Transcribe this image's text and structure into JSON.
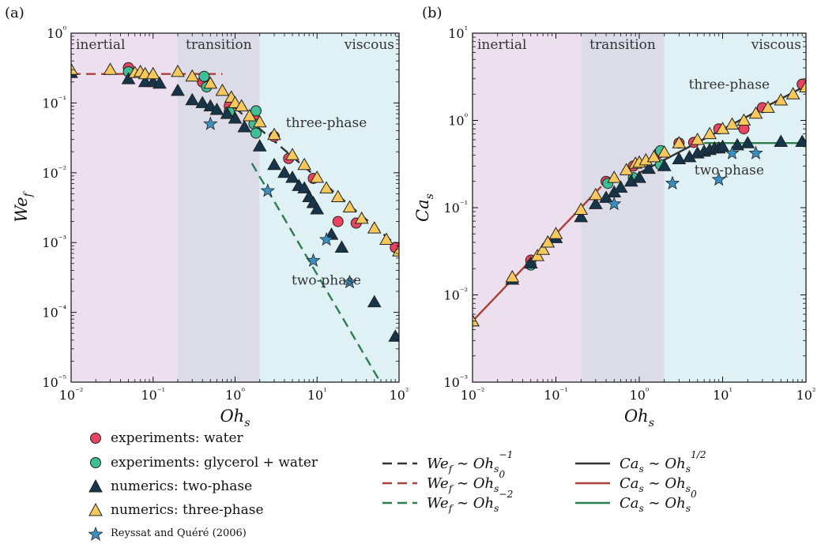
{
  "chart_data": [
    {
      "panel_label": "(a)",
      "type": "scatter",
      "x_scale": "log",
      "y_scale": "log",
      "xlim": [
        0.01,
        100
      ],
      "ylim": [
        1e-05,
        1
      ],
      "xlabel": "Oh_s",
      "ylabel": "We_f",
      "x_ticks": [
        "10⁻²",
        "10⁻¹",
        "10⁰",
        "10¹",
        "10²"
      ],
      "y_ticks": [
        "10⁻⁵",
        "10⁻⁴",
        "10⁻³",
        "10⁻²",
        "10⁻¹",
        "10⁰"
      ],
      "regions": [
        {
          "label": "inertial",
          "from": 0.01,
          "to": 0.2,
          "color": "#ece0ee"
        },
        {
          "label": "transition",
          "from": 0.2,
          "to": 2,
          "color": "#dcdbe8"
        },
        {
          "label": "viscous",
          "from": 2,
          "to": 100,
          "color": "#dff1f4"
        }
      ],
      "annotations": [
        {
          "text": "three-phase",
          "x": 13,
          "y": 0.045
        },
        {
          "text": "two-phase",
          "x": 13,
          "y": 0.00025
        }
      ],
      "series": [
        {
          "marker": "circle",
          "color": "#e8445f",
          "points": [
            [
              0.05,
              0.32
            ],
            [
              0.4,
              0.2
            ],
            [
              0.85,
              0.09
            ],
            [
              1.7,
              0.06
            ],
            [
              3,
              0.033
            ],
            [
              4.5,
              0.016
            ],
            [
              9,
              0.0083
            ],
            [
              18,
              0.002
            ],
            [
              30,
              0.0019
            ],
            [
              90,
              0.00085
            ]
          ]
        },
        {
          "marker": "circle",
          "color": "#3fbf96",
          "points": [
            [
              0.05,
              0.28
            ],
            [
              0.42,
              0.24
            ],
            [
              0.45,
              0.17
            ],
            [
              0.85,
              0.075
            ],
            [
              1.7,
              0.05
            ],
            [
              1.8,
              0.037
            ],
            [
              1.8,
              0.077
            ]
          ]
        },
        {
          "marker": "triangle",
          "color": "#14354a",
          "points": [
            [
              0.01,
              0.27
            ],
            [
              0.05,
              0.22
            ],
            [
              0.08,
              0.2
            ],
            [
              0.1,
              0.2
            ],
            [
              0.12,
              0.19
            ],
            [
              0.2,
              0.15
            ],
            [
              0.3,
              0.11
            ],
            [
              0.4,
              0.1
            ],
            [
              0.5,
              0.09
            ],
            [
              0.6,
              0.08
            ],
            [
              0.8,
              0.07
            ],
            [
              1,
              0.06
            ],
            [
              1.3,
              0.045
            ],
            [
              2,
              0.024
            ],
            [
              3,
              0.013
            ],
            [
              4,
              0.01
            ],
            [
              5,
              0.0085
            ],
            [
              6,
              0.0065
            ],
            [
              7,
              0.006
            ],
            [
              8,
              0.0045
            ],
            [
              9,
              0.0037
            ],
            [
              10,
              0.003
            ],
            [
              15,
              0.0013
            ],
            [
              20,
              0.00085
            ],
            [
              50,
              0.00014
            ],
            [
              90,
              4.5e-05
            ]
          ]
        },
        {
          "marker": "triangle",
          "color": "#f7c85c",
          "points": [
            [
              0.01,
              0.3
            ],
            [
              0.03,
              0.3
            ],
            [
              0.06,
              0.27
            ],
            [
              0.07,
              0.28
            ],
            [
              0.08,
              0.26
            ],
            [
              0.1,
              0.26
            ],
            [
              0.2,
              0.28
            ],
            [
              0.3,
              0.24
            ],
            [
              0.5,
              0.19
            ],
            [
              0.7,
              0.15
            ],
            [
              0.9,
              0.12
            ],
            [
              1,
              0.1
            ],
            [
              1.2,
              0.09
            ],
            [
              1.5,
              0.065
            ],
            [
              2,
              0.053
            ],
            [
              3,
              0.035
            ],
            [
              5,
              0.018
            ],
            [
              7,
              0.013
            ],
            [
              10,
              0.0085
            ],
            [
              13,
              0.006
            ],
            [
              18,
              0.0045
            ],
            [
              25,
              0.0032
            ],
            [
              35,
              0.0022
            ],
            [
              50,
              0.0016
            ],
            [
              70,
              0.0011
            ],
            [
              100,
              0.00075
            ]
          ]
        },
        {
          "marker": "star",
          "color": "#3a8fc3",
          "points": [
            [
              0.5,
              0.05
            ],
            [
              2.5,
              0.0055
            ],
            [
              9,
              0.00055
            ],
            [
              13,
              0.0011
            ],
            [
              25,
              0.00027
            ]
          ]
        }
      ],
      "fit_lines": [
        {
          "color": "#333333",
          "style": "dashed",
          "x": [
            1,
            100
          ],
          "y": [
            0.085,
            0.00085
          ]
        },
        {
          "color": "#a8403a",
          "style": "dashed",
          "x": [
            0.01,
            0.7
          ],
          "y": [
            0.26,
            0.26
          ]
        },
        {
          "color": "#2e7d4f",
          "style": "dashed",
          "x": [
            1.6,
            100
          ],
          "y": [
            0.0137,
            3.5e-06
          ]
        }
      ]
    },
    {
      "panel_label": "(b)",
      "type": "scatter",
      "x_scale": "log",
      "y_scale": "log",
      "xlim": [
        0.01,
        100
      ],
      "ylim": [
        0.001,
        10
      ],
      "xlabel": "Oh_s",
      "ylabel": "Ca_s",
      "x_ticks": [
        "10⁻²",
        "10⁻¹",
        "10⁰",
        "10¹",
        "10²"
      ],
      "y_ticks": [
        "10⁻³",
        "10⁻²",
        "10⁻¹",
        "10⁰",
        "10¹"
      ],
      "regions": [
        {
          "label": "inertial",
          "from": 0.01,
          "to": 0.2,
          "color": "#ece0ee"
        },
        {
          "label": "transition",
          "from": 0.2,
          "to": 2,
          "color": "#dcdbe8"
        },
        {
          "label": "viscous",
          "from": 2,
          "to": 100,
          "color": "#dff1f4"
        }
      ],
      "annotations": [
        {
          "text": "three-phase",
          "x": 12,
          "y": 2.3
        },
        {
          "text": "two-phase",
          "x": 12,
          "y": 0.24
        }
      ],
      "series": [
        {
          "marker": "circle",
          "color": "#e8445f",
          "points": [
            [
              0.05,
              0.025
            ],
            [
              0.4,
              0.2
            ],
            [
              0.85,
              0.3
            ],
            [
              1.7,
              0.42
            ],
            [
              3,
              0.55
            ],
            [
              4.5,
              0.56
            ],
            [
              9,
              0.8
            ],
            [
              18,
              0.8
            ],
            [
              30,
              1.4
            ],
            [
              90,
              2.6
            ]
          ]
        },
        {
          "marker": "circle",
          "color": "#3fbf96",
          "points": [
            [
              0.05,
              0.022
            ],
            [
              0.42,
              0.19
            ],
            [
              0.85,
              0.22
            ],
            [
              1.8,
              0.45
            ],
            [
              1.8,
              0.31
            ]
          ]
        },
        {
          "marker": "triangle",
          "color": "#14354a",
          "points": [
            [
              0.01,
              0.005
            ],
            [
              0.03,
              0.015
            ],
            [
              0.05,
              0.023
            ],
            [
              0.08,
              0.04
            ],
            [
              0.1,
              0.045
            ],
            [
              0.2,
              0.078
            ],
            [
              0.3,
              0.11
            ],
            [
              0.4,
              0.13
            ],
            [
              0.5,
              0.15
            ],
            [
              0.6,
              0.17
            ],
            [
              0.8,
              0.2
            ],
            [
              1,
              0.22
            ],
            [
              1.3,
              0.28
            ],
            [
              2,
              0.3
            ],
            [
              3,
              0.36
            ],
            [
              4,
              0.38
            ],
            [
              5,
              0.42
            ],
            [
              6,
              0.44
            ],
            [
              7,
              0.46
            ],
            [
              8,
              0.48
            ],
            [
              9,
              0.48
            ],
            [
              10,
              0.5
            ],
            [
              15,
              0.52
            ],
            [
              20,
              0.55
            ],
            [
              50,
              0.57
            ],
            [
              90,
              0.57
            ]
          ]
        },
        {
          "marker": "triangle",
          "color": "#f7c85c",
          "points": [
            [
              0.01,
              0.005
            ],
            [
              0.03,
              0.016
            ],
            [
              0.06,
              0.028
            ],
            [
              0.07,
              0.033
            ],
            [
              0.08,
              0.04
            ],
            [
              0.1,
              0.05
            ],
            [
              0.2,
              0.095
            ],
            [
              0.3,
              0.14
            ],
            [
              0.5,
              0.22
            ],
            [
              0.7,
              0.27
            ],
            [
              0.9,
              0.32
            ],
            [
              1,
              0.33
            ],
            [
              1.2,
              0.35
            ],
            [
              1.5,
              0.38
            ],
            [
              2,
              0.43
            ],
            [
              3,
              0.55
            ],
            [
              5,
              0.6
            ],
            [
              7,
              0.7
            ],
            [
              10,
              0.8
            ],
            [
              13,
              0.9
            ],
            [
              18,
              1
            ],
            [
              25,
              1.2
            ],
            [
              35,
              1.4
            ],
            [
              50,
              1.7
            ],
            [
              70,
              2
            ],
            [
              100,
              2.4
            ]
          ]
        },
        {
          "marker": "star",
          "color": "#3a8fc3",
          "points": [
            [
              0.5,
              0.11
            ],
            [
              2.5,
              0.19
            ],
            [
              9,
              0.21
            ],
            [
              13,
              0.42
            ],
            [
              25,
              0.42
            ]
          ]
        }
      ],
      "fit_lines": [
        {
          "color": "#333333",
          "style": "solid",
          "x": [
            1,
            100
          ],
          "y": [
            0.25,
            2.5
          ]
        },
        {
          "color": "#a8403a",
          "style": "solid",
          "x": [
            0.01,
            0.35
          ],
          "y": [
            0.005,
            0.175
          ]
        },
        {
          "color": "#2e7d4f",
          "style": "solid",
          "x": [
            6,
            100
          ],
          "y": [
            0.55,
            0.55
          ]
        }
      ]
    }
  ],
  "legend": {
    "markers": [
      {
        "label": "experiments: water",
        "marker": "circle",
        "color": "#e8445f"
      },
      {
        "label": "experiments: glycerol + water",
        "marker": "circle",
        "color": "#3fbf96"
      },
      {
        "label": "numerics: two-phase",
        "marker": "triangle",
        "color": "#14354a"
      },
      {
        "label": "numerics: three-phase",
        "marker": "triangle",
        "color": "#f7c85c"
      },
      {
        "label": "Reyssat and Quéré (2006)",
        "marker": "star",
        "color": "#3a8fc3"
      }
    ],
    "dashed": [
      {
        "label": "We_f ∼ Oh_s^−1",
        "color": "#333333"
      },
      {
        "label": "We_f ∼ Oh_s^0",
        "color": "#a8403a"
      },
      {
        "label": "We_f ∼ Oh_s^−2",
        "color": "#2e7d4f"
      }
    ],
    "solid": [
      {
        "label": "Ca_s ∼ Oh_s^1/2",
        "color": "#333333"
      },
      {
        "label": "Ca_s ∼ Oh_s",
        "color": "#a8403a"
      },
      {
        "label": "Ca_s ∼ Oh_s^0",
        "color": "#2e7d4f"
      }
    ]
  },
  "legend_text": {
    "water": "experiments: water",
    "glycerol": "experiments: glycerol + water",
    "two_phase": "numerics: two-phase",
    "three_phase": "numerics: three-phase",
    "reyssat": "Reyssat and Quéré (2006)"
  }
}
